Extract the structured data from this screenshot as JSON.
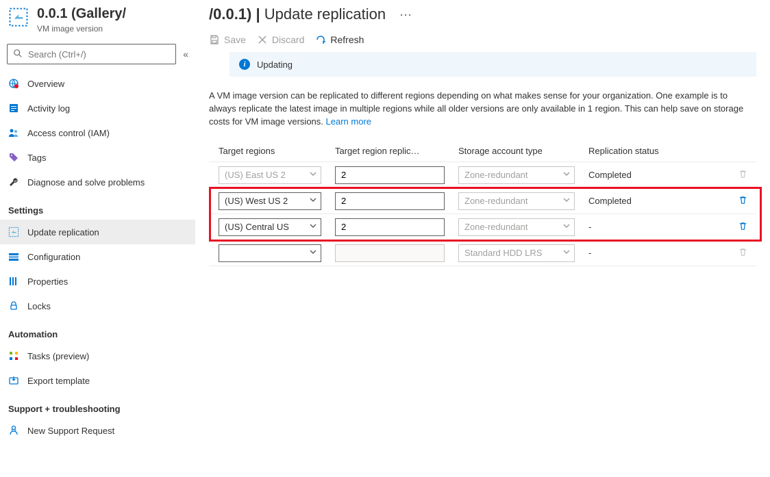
{
  "header": {
    "title_left": "0.0.1 (Gallery/",
    "title_right": "/0.0.1) | ",
    "title_suffix": "Update replication",
    "subtitle": "VM image version",
    "search_placeholder": "Search (Ctrl+/)"
  },
  "nav": {
    "items": [
      {
        "label": "Overview",
        "icon": "globe"
      },
      {
        "label": "Activity log",
        "icon": "log"
      },
      {
        "label": "Access control (IAM)",
        "icon": "iam"
      },
      {
        "label": "Tags",
        "icon": "tag"
      },
      {
        "label": "Diagnose and solve problems",
        "icon": "wrench"
      }
    ],
    "section_settings": "Settings",
    "settings": [
      {
        "label": "Update replication",
        "icon": "repl",
        "selected": true
      },
      {
        "label": "Configuration",
        "icon": "config"
      },
      {
        "label": "Properties",
        "icon": "props"
      },
      {
        "label": "Locks",
        "icon": "lock"
      }
    ],
    "section_automation": "Automation",
    "automation": [
      {
        "label": "Tasks (preview)",
        "icon": "tasks"
      },
      {
        "label": "Export template",
        "icon": "export"
      }
    ],
    "section_support": "Support + troubleshooting",
    "support": [
      {
        "label": "New Support Request",
        "icon": "support"
      }
    ]
  },
  "toolbar": {
    "save": "Save",
    "discard": "Discard",
    "refresh": "Refresh"
  },
  "infobar": {
    "text": "Updating"
  },
  "description": {
    "text": "A VM image version can be replicated to different regions depending on what makes sense for your organization. One example is to always replicate the latest image in multiple regions while all older versions are only available in 1 region. This can help save on storage costs for VM image versions. ",
    "link": "Learn more"
  },
  "table": {
    "columns": {
      "region": "Target regions",
      "count": "Target region replic…",
      "storage": "Storage account type",
      "status": "Replication status"
    },
    "rows": [
      {
        "region": "(US) East US 2",
        "region_disabled": true,
        "count": "2",
        "count_disabled": false,
        "storage": "Zone-redundant",
        "storage_disabled": true,
        "status": "Completed",
        "delete_disabled": true
      },
      {
        "region": "(US) West US 2",
        "region_disabled": false,
        "count": "2",
        "count_disabled": false,
        "storage": "Zone-redundant",
        "storage_disabled": true,
        "status": "Completed",
        "delete_disabled": false,
        "highlighted": true
      },
      {
        "region": "(US) Central US",
        "region_disabled": false,
        "count": "2",
        "count_disabled": false,
        "storage": "Zone-redundant",
        "storage_disabled": true,
        "status": "-",
        "delete_disabled": false,
        "highlighted": true
      },
      {
        "region": "",
        "region_disabled": false,
        "count": "",
        "count_disabled": true,
        "storage": "Standard HDD LRS",
        "storage_disabled": true,
        "status": "-",
        "delete_disabled": true
      }
    ],
    "highlight_color": "#e81123"
  },
  "colors": {
    "accent": "#0078d4",
    "info_bg": "#eff6fc",
    "selected_bg": "#ededed",
    "border": "#605e5c",
    "muted": "#a19f9d"
  }
}
